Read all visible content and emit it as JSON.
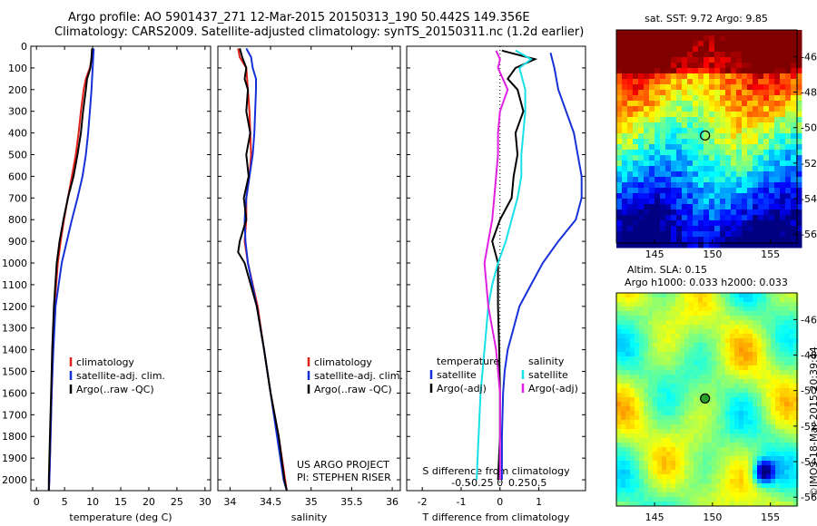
{
  "header": {
    "title_line1": "Argo profile: AO 5901437_271 12-Mar-2015 20150313_190 50.442S 149.356E",
    "title_line2": "Climatology: CARS2009. Satellite-adjusted climatology: synTS_20150311.nc (1.2d earlier)"
  },
  "colors": {
    "climatology": "#e0201a",
    "satellite": "#1530d8",
    "argo": "#000000",
    "sat_cyan": "#18e0e8",
    "argo_magenta": "#e020e0"
  },
  "chart_data": [
    {
      "type": "line",
      "name": "temperature-profile",
      "xlabel": "temperature (deg C)",
      "ylabel": "",
      "xlim": [
        -1,
        31
      ],
      "ylim": [
        2050,
        0
      ],
      "xticks": [
        0,
        5,
        10,
        15,
        20,
        25,
        30
      ],
      "yticks": [
        0,
        100,
        200,
        300,
        400,
        500,
        600,
        700,
        800,
        900,
        1000,
        1100,
        1200,
        1300,
        1400,
        1500,
        1600,
        1700,
        1800,
        1900,
        2000
      ],
      "legend": [
        "climatology",
        "satellite-adj. clim.",
        "Argo(..raw -QC)"
      ],
      "legend_position": "bottom-center",
      "series": [
        {
          "name": "climatology",
          "color": "#e0201a",
          "depth": [
            10,
            50,
            100,
            150,
            200,
            300,
            400,
            500,
            600,
            700,
            800,
            900,
            1000,
            1200,
            1400,
            1600,
            1800,
            2000,
            2050
          ],
          "values": [
            10.0,
            9.9,
            9.5,
            8.8,
            8.4,
            7.9,
            7.5,
            7.0,
            6.3,
            5.6,
            4.9,
            4.3,
            3.8,
            3.2,
            2.9,
            2.7,
            2.5,
            2.3,
            2.2
          ]
        },
        {
          "name": "satellite-adj. clim.",
          "color": "#1530d8",
          "depth": [
            10,
            50,
            100,
            150,
            200,
            300,
            400,
            500,
            600,
            700,
            800,
            900,
            1000,
            1200,
            1400,
            1600,
            1800,
            2000,
            2050
          ],
          "values": [
            10.2,
            10.1,
            10.0,
            9.9,
            9.8,
            9.5,
            9.2,
            8.8,
            8.2,
            7.3,
            6.3,
            5.4,
            4.5,
            3.4,
            3.0,
            2.7,
            2.5,
            2.3,
            2.2
          ]
        },
        {
          "name": "Argo(..raw -QC)",
          "color": "#000000",
          "depth": [
            10,
            50,
            100,
            150,
            200,
            300,
            400,
            500,
            600,
            700,
            800,
            900,
            1000,
            1200,
            1400,
            1600,
            1800,
            2000,
            2050
          ],
          "values": [
            9.9,
            9.8,
            9.6,
            9.0,
            8.8,
            8.3,
            7.9,
            7.3,
            6.6,
            5.6,
            4.8,
            4.1,
            3.6,
            3.1,
            2.8,
            2.6,
            2.4,
            2.2,
            2.2
          ]
        }
      ]
    },
    {
      "type": "line",
      "name": "salinity-profile",
      "xlabel": "salinity",
      "xlim": [
        33.85,
        36.1
      ],
      "ylim": [
        2050,
        0
      ],
      "xticks": [
        34,
        34.5,
        35,
        35.5,
        36
      ],
      "legend": [
        "climatology",
        "satellite-adj. clim.",
        "Argo(..raw -QC)"
      ],
      "legend_position": "bottom-center",
      "annotation": [
        "US ARGO PROJECT",
        "PI: STEPHEN RISER"
      ],
      "series": [
        {
          "name": "climatology",
          "color": "#e0201a",
          "depth": [
            10,
            50,
            100,
            200,
            300,
            400,
            500,
            600,
            700,
            800,
            900,
            1000,
            1200,
            1400,
            1600,
            1800,
            2000,
            2050
          ],
          "values": [
            34.1,
            34.12,
            34.2,
            34.22,
            34.24,
            34.25,
            34.26,
            34.24,
            34.2,
            34.2,
            34.18,
            34.22,
            34.34,
            34.42,
            34.5,
            34.6,
            34.68,
            34.7
          ]
        },
        {
          "name": "satellite-adj. clim.",
          "color": "#1530d8",
          "depth": [
            10,
            50,
            100,
            150,
            200,
            300,
            400,
            500,
            600,
            700,
            800,
            900,
            1000,
            1200,
            1400,
            1600,
            1800,
            2000,
            2050
          ],
          "values": [
            34.2,
            34.26,
            34.28,
            34.32,
            34.32,
            34.31,
            34.3,
            34.28,
            34.24,
            34.2,
            34.18,
            34.19,
            34.22,
            34.33,
            34.42,
            34.5,
            34.58,
            34.66,
            34.7
          ]
        },
        {
          "name": "Argo(..raw -QC)",
          "color": "#000000",
          "depth": [
            10,
            50,
            100,
            150,
            200,
            300,
            400,
            500,
            600,
            700,
            800,
            900,
            950,
            1000,
            1200,
            1400,
            1600,
            1800,
            2000,
            2050
          ],
          "values": [
            34.12,
            34.15,
            34.2,
            34.18,
            34.22,
            34.2,
            34.25,
            34.2,
            34.23,
            34.17,
            34.2,
            34.12,
            34.1,
            34.18,
            34.33,
            34.42,
            34.5,
            34.6,
            34.67,
            34.7
          ]
        }
      ]
    },
    {
      "type": "line",
      "name": "difference-profile",
      "xlabel": "T difference from climatology",
      "xlabel_top": "S difference from climatology",
      "xlim": [
        -2.4,
        2.2
      ],
      "ylim": [
        2050,
        0
      ],
      "xticks_T": [
        -2,
        -1,
        0,
        1
      ],
      "xticks_S": [
        "-0.5",
        "-0.25",
        "0",
        "0.25",
        "0.5"
      ],
      "legend_groups": [
        {
          "title": "temperature",
          "items": [
            "satellite",
            "Argo(-adj)"
          ]
        },
        {
          "title": "salinity",
          "items": [
            "satellite",
            "Argo(-adj)"
          ]
        }
      ],
      "series": [
        {
          "name": "temperature satellite",
          "color": "#1530d8",
          "depth": [
            30,
            100,
            200,
            300,
            400,
            500,
            600,
            700,
            800,
            900,
            1000,
            1100,
            1200,
            1300,
            1400,
            1500,
            1600,
            1800,
            2000
          ],
          "values": [
            1.3,
            1.4,
            1.5,
            1.7,
            1.9,
            2.0,
            2.1,
            2.1,
            1.95,
            1.5,
            1.1,
            0.8,
            0.5,
            0.35,
            0.2,
            0.12,
            0.08,
            0.05,
            0.05
          ]
        },
        {
          "name": "temperature Argo(-adj)",
          "color": "#000000",
          "depth": [
            20,
            60,
            100,
            150,
            200,
            300,
            400,
            500,
            600,
            700,
            800,
            900,
            1000,
            1200,
            1400,
            1600,
            1800,
            2000
          ],
          "values": [
            0.05,
            0.9,
            0.4,
            0.2,
            0.45,
            0.6,
            0.4,
            0.45,
            0.35,
            0.3,
            0.0,
            -0.2,
            -0.05,
            -0.05,
            -0.02,
            0.0,
            0.0,
            -0.05
          ]
        },
        {
          "name": "salinity satellite",
          "color": "#18e0e8",
          "depth": [
            20,
            60,
            100,
            200,
            300,
            400,
            500,
            600,
            700,
            800,
            900,
            1000,
            1100,
            1200,
            1400,
            1600,
            1800,
            2000
          ],
          "values": [
            0.4,
            0.8,
            0.5,
            0.65,
            0.65,
            0.6,
            0.55,
            0.55,
            0.45,
            0.3,
            0.15,
            -0.05,
            -0.2,
            -0.3,
            -0.4,
            -0.5,
            -0.55,
            -0.6
          ]
        },
        {
          "name": "salinity Argo(-adj)",
          "color": "#e020e0",
          "depth": [
            20,
            60,
            100,
            200,
            300,
            400,
            500,
            600,
            700,
            800,
            900,
            1000,
            1100,
            1200,
            1400,
            1600,
            1800,
            2000
          ],
          "values": [
            -0.1,
            0.0,
            -0.05,
            0.2,
            0.0,
            -0.05,
            -0.05,
            -0.1,
            -0.15,
            -0.2,
            -0.3,
            -0.4,
            -0.35,
            -0.3,
            -0.1,
            0.0,
            0.0,
            0.0
          ]
        }
      ]
    },
    {
      "type": "heatmap",
      "name": "sst-map",
      "title": "sat. SST: 9.72 Argo: 9.85",
      "xlim": [
        141.7,
        157.3
      ],
      "ylim": [
        -56.5,
        -44.5
      ],
      "xticks": [
        "145",
        "150",
        "155"
      ],
      "yticks": [
        "-46",
        "-48",
        "-50",
        "-52",
        "-54",
        "-56"
      ],
      "marker": {
        "lon": 149.356,
        "lat": -50.442
      }
    },
    {
      "type": "heatmap",
      "name": "sla-map",
      "title_line1": "Altim. SLA: 0.15",
      "title_line2": "Argo h1000: 0.033 h2000: 0.033",
      "xlim": [
        141.7,
        157.3
      ],
      "ylim": [
        -56.5,
        -44.5
      ],
      "xticks": [
        "145",
        "150",
        "155"
      ],
      "yticks": [
        "-46",
        "-48",
        "-50",
        "-52",
        "-54",
        "-56"
      ],
      "marker": {
        "lon": 149.356,
        "lat": -50.442
      }
    }
  ],
  "footer": {
    "credit": "©IMOS 18-Mar-2015 20:39:44"
  }
}
